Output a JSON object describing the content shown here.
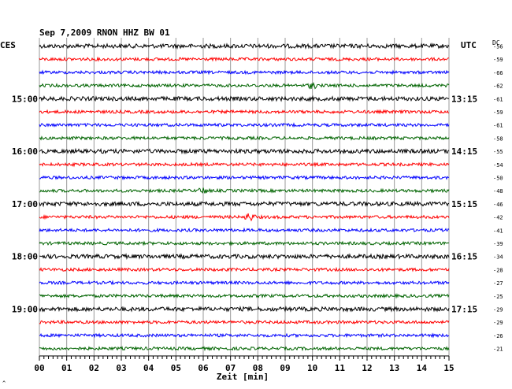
{
  "chart_data": {
    "type": "line",
    "title": "Sep 7,2009   RNON HHZ BW 01",
    "left_tz": "CES",
    "right_tz": "UTC",
    "dc_label": "DC",
    "xlabel": "Zeit [min]",
    "x_ticks": [
      "00",
      "01",
      "02",
      "03",
      "04",
      "05",
      "06",
      "07",
      "08",
      "09",
      "10",
      "11",
      "12",
      "13",
      "14",
      "15"
    ],
    "xlim": [
      0,
      15
    ],
    "left_hour_labels": [
      {
        "row": 4,
        "text": "15:00"
      },
      {
        "row": 8,
        "text": "16:00"
      },
      {
        "row": 12,
        "text": "17:00"
      },
      {
        "row": 16,
        "text": "18:00"
      },
      {
        "row": 20,
        "text": "19:00"
      }
    ],
    "right_hour_labels": [
      {
        "row": 4,
        "text": "13:15"
      },
      {
        "row": 8,
        "text": "14:15"
      },
      {
        "row": 12,
        "text": "15:15"
      },
      {
        "row": 16,
        "text": "16:15"
      },
      {
        "row": 20,
        "text": "17:15"
      }
    ],
    "dc_offsets": [
      "-56",
      "-59",
      "-66",
      "-62",
      "-61",
      "-59",
      "-61",
      "-58",
      "-55",
      "-54",
      "-50",
      "-48",
      "-46",
      "-42",
      "-41",
      "-39",
      "-34",
      "-28",
      "-27",
      "-25",
      "-29",
      "-29",
      "-26",
      "-21"
    ],
    "trace_colors": [
      "#000000",
      "#ff0000",
      "#0000ff",
      "#006400"
    ],
    "trace_count": 24,
    "events": [
      {
        "row": 13,
        "minute": 7.7,
        "amplitude": "high"
      },
      {
        "row": 3,
        "minute": 10.0,
        "amplitude": "medium"
      },
      {
        "row": 11,
        "minute": 6.0,
        "amplitude": "medium"
      }
    ]
  },
  "footer_mark": "^"
}
